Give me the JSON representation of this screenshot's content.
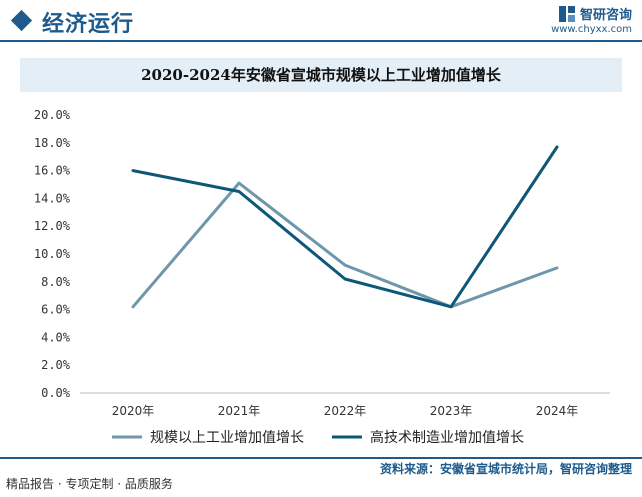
{
  "header": {
    "section_title": "经济运行",
    "brand_name": "智研咨询",
    "brand_url": "www.chyxx.com"
  },
  "chart_title": "2020-2024年安徽省宣城市规模以上工业增加值增长",
  "footer": {
    "left_text": "精品报告 · 专项定制 · 品质服务",
    "source": "资料来源：安徽省宣城市统计局，智研咨询整理"
  },
  "colors": {
    "brand": "#1e5a8c",
    "series_1": "#6e97ab",
    "series_2": "#0d5778"
  },
  "chart_data": {
    "type": "line",
    "title": "2020-2024年安徽省宣城市规模以上工业增加值增长",
    "xlabel": "",
    "ylabel": "",
    "categories": [
      "2020年",
      "2021年",
      "2022年",
      "2023年",
      "2024年"
    ],
    "ylim": [
      0,
      20
    ],
    "yticks": [
      "0.0%",
      "2.0%",
      "4.0%",
      "6.0%",
      "8.0%",
      "10.0%",
      "12.0%",
      "14.0%",
      "16.0%",
      "18.0%",
      "20.0%"
    ],
    "grid": false,
    "legend_position": "bottom",
    "series": [
      {
        "name": "规模以上工业增加值增长",
        "values": [
          6.2,
          15.1,
          9.2,
          6.2,
          9.0
        ]
      },
      {
        "name": "高技术制造业增加值增长",
        "values": [
          16.0,
          14.5,
          8.2,
          6.2,
          17.7
        ]
      }
    ]
  }
}
